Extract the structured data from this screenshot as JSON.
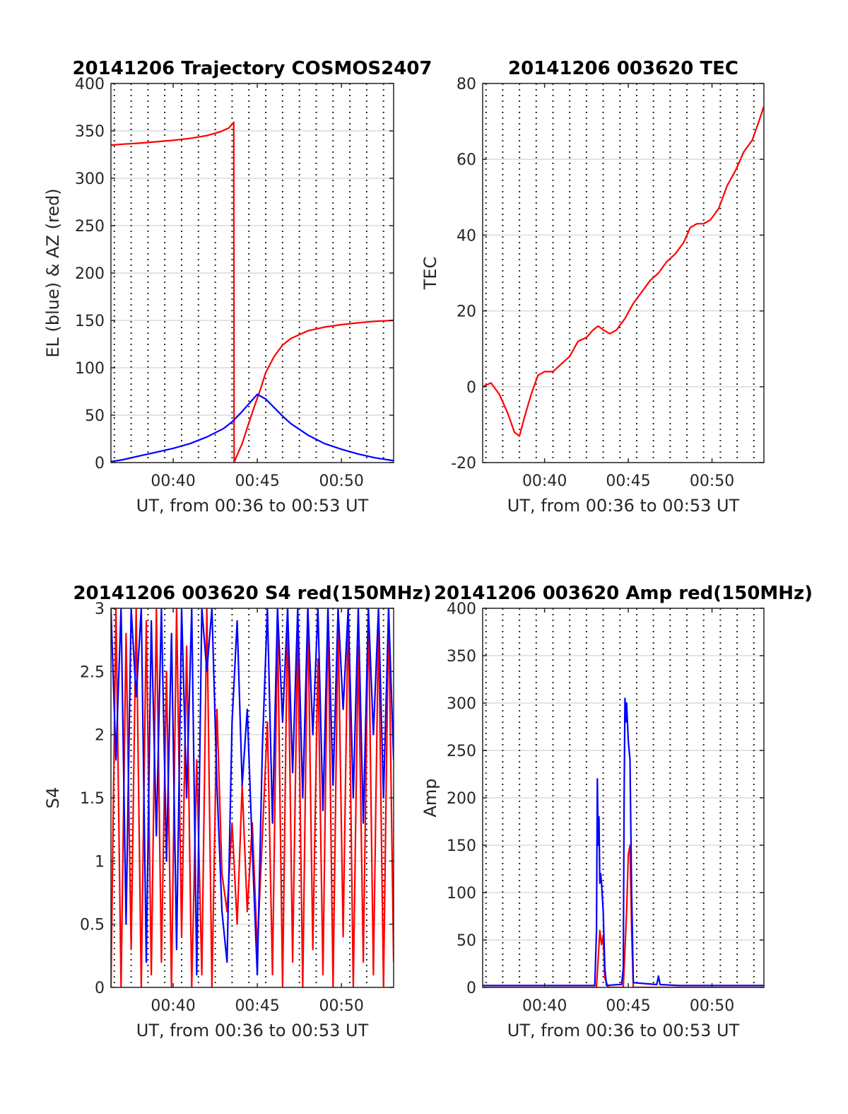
{
  "colors": {
    "az": "#ff0000",
    "el": "#0000ff",
    "red": "#ff0000",
    "blue": "#0000ff",
    "grid": "#262626"
  },
  "chart_data": [
    {
      "type": "line",
      "title": "20141206 Trajectory COSMOS2407",
      "xlabel": "UT, from 00:36 to 00:53 UT",
      "ylabel": "EL (blue) & AZ (red)",
      "xlim": [
        36.3,
        53.1
      ],
      "ylim": [
        0,
        400
      ],
      "xticks": [
        40,
        45,
        50
      ],
      "xticklabels": [
        "00:40",
        "00:45",
        "00:50"
      ],
      "yticks": [
        0,
        50,
        100,
        150,
        200,
        250,
        300,
        350,
        400
      ],
      "yticklabels": [
        "0",
        "50",
        "100",
        "150",
        "200",
        "250",
        "300",
        "350",
        "400"
      ],
      "vgrid_minutes": [
        36.5,
        37.5,
        38.5,
        39.5,
        40.5,
        41.5,
        42.5,
        43.5,
        44.5,
        45.5,
        46.5,
        47.5,
        48.5,
        49.5,
        50.5,
        51.5,
        52.5
      ],
      "grid": true,
      "series": [
        {
          "name": "AZ (red)",
          "color": "#ff0000",
          "x": [
            36.3,
            37.0,
            38.0,
            39.0,
            40.0,
            41.0,
            42.0,
            42.8,
            43.3,
            43.6,
            43.62,
            43.8,
            44.1,
            44.5,
            44.8,
            45.0,
            45.2,
            45.5,
            46.0,
            46.5,
            47.0,
            48.0,
            49.0,
            50.0,
            51.0,
            52.0,
            53.1
          ],
          "y": [
            335,
            336,
            337,
            338.5,
            340,
            342,
            345,
            349,
            353,
            359,
            0,
            8,
            20,
            42,
            58,
            68,
            78,
            95,
            112,
            124,
            131,
            139,
            143,
            145.5,
            147.5,
            149,
            150
          ]
        },
        {
          "name": "EL (blue)",
          "color": "#0000ff",
          "x": [
            36.3,
            37.0,
            38.0,
            39.0,
            40.0,
            41.0,
            42.0,
            43.0,
            43.5,
            44.0,
            44.5,
            45.0,
            45.5,
            46.0,
            46.5,
            47.0,
            48.0,
            49.0,
            50.0,
            51.0,
            52.0,
            53.1
          ],
          "y": [
            1,
            3,
            7,
            11,
            15,
            20,
            27,
            36,
            43,
            52,
            62,
            72,
            67,
            58,
            49,
            41,
            29,
            20,
            14,
            9,
            5,
            2
          ]
        }
      ]
    },
    {
      "type": "line",
      "title": "20141206 003620 TEC",
      "xlabel": "UT, from 00:36 to 00:53 UT",
      "ylabel": "TEC",
      "xlim": [
        36.3,
        53.1
      ],
      "ylim": [
        -20,
        80
      ],
      "xticks": [
        40,
        45,
        50
      ],
      "xticklabels": [
        "00:40",
        "00:45",
        "00:50"
      ],
      "yticks": [
        -20,
        0,
        20,
        40,
        60,
        80
      ],
      "yticklabels": [
        "-20",
        "0",
        "20",
        "40",
        "60",
        "80"
      ],
      "vgrid_minutes": [
        36.5,
        37.5,
        38.5,
        39.5,
        40.5,
        41.5,
        42.5,
        43.5,
        44.5,
        45.5,
        46.5,
        47.5,
        48.5,
        49.5,
        50.5,
        51.5,
        52.5
      ],
      "grid": true,
      "series": [
        {
          "color": "#ff0000",
          "x": [
            36.3,
            36.8,
            37.3,
            37.8,
            38.2,
            38.5,
            38.8,
            39.2,
            39.6,
            40.0,
            40.5,
            41.0,
            41.5,
            42.0,
            42.5,
            42.9,
            43.2,
            43.5,
            43.9,
            44.3,
            44.8,
            45.3,
            45.8,
            46.3,
            46.8,
            47.3,
            47.8,
            48.3,
            48.7,
            49.1,
            49.5,
            49.9,
            50.4,
            50.9,
            51.4,
            51.9,
            52.4,
            52.8,
            53.1
          ],
          "y": [
            0,
            1,
            -2,
            -7,
            -12,
            -13,
            -8,
            -2,
            3,
            4,
            4,
            6,
            8,
            12,
            13,
            15,
            16,
            15,
            14,
            15,
            18,
            22,
            25,
            28,
            30,
            33,
            35,
            38,
            42,
            43,
            43,
            44,
            47,
            53,
            57,
            62,
            65,
            70,
            74
          ]
        }
      ]
    },
    {
      "type": "line",
      "title": "20141206 003620 S4 red(150MHz)",
      "xlabel": "UT, from 00:36 to 00:53 UT",
      "ylabel": "S4",
      "xlim": [
        36.3,
        53.1
      ],
      "ylim": [
        0,
        3
      ],
      "xticks": [
        40,
        45,
        50
      ],
      "xticklabels": [
        "00:40",
        "00:45",
        "00:50"
      ],
      "yticks": [
        0,
        0.5,
        1,
        1.5,
        2,
        2.5,
        3
      ],
      "yticklabels": [
        "0",
        "0.5",
        "1",
        "1.5",
        "2",
        "2.5",
        "3"
      ],
      "vgrid_minutes": [
        36.5,
        37.5,
        38.5,
        39.5,
        40.5,
        41.5,
        42.5,
        43.5,
        44.5,
        45.5,
        46.5,
        47.5,
        48.5,
        49.5,
        50.5,
        51.5,
        52.5
      ],
      "grid": true,
      "series": [
        {
          "name": "red",
          "color": "#ff0000",
          "x": [
            36.3,
            36.6,
            36.9,
            37.2,
            37.5,
            37.8,
            38.1,
            38.4,
            38.7,
            39.0,
            39.3,
            39.6,
            39.9,
            40.2,
            40.5,
            40.8,
            41.1,
            41.4,
            41.7,
            42.0,
            42.3,
            42.6,
            42.9,
            43.2,
            43.5,
            43.8,
            44.1,
            44.4,
            44.7,
            45.0,
            45.3,
            45.6,
            45.9,
            46.2,
            46.5,
            46.8,
            47.1,
            47.4,
            47.7,
            48.0,
            48.3,
            48.6,
            48.9,
            49.2,
            49.5,
            49.8,
            50.1,
            50.4,
            50.7,
            51.0,
            51.3,
            51.6,
            51.9,
            52.2,
            52.5,
            52.8,
            53.1
          ],
          "y": [
            0,
            3,
            0,
            2.8,
            0.3,
            3,
            0,
            2.9,
            0.1,
            3,
            0.2,
            2.5,
            0,
            3,
            0.4,
            2.7,
            0,
            1.8,
            0.1,
            3,
            0,
            2.2,
            0.9,
            0.6,
            1.3,
            0.5,
            1.6,
            0.6,
            1.3,
            0.3,
            1.2,
            2.1,
            0.1,
            2.9,
            0,
            3,
            0.2,
            2.8,
            0,
            3,
            0.3,
            2.6,
            0.1,
            3,
            0,
            2.9,
            0.4,
            3,
            0,
            2.7,
            0.2,
            3,
            0.1,
            2.9,
            0,
            3,
            0.2
          ]
        },
        {
          "name": "blue",
          "color": "#0000ff",
          "x": [
            36.3,
            36.6,
            36.9,
            37.2,
            37.5,
            37.8,
            38.1,
            38.4,
            38.7,
            39.0,
            39.3,
            39.6,
            39.9,
            40.2,
            40.5,
            40.8,
            41.1,
            41.4,
            41.7,
            42.0,
            42.3,
            42.6,
            42.9,
            43.2,
            43.5,
            43.8,
            44.1,
            44.4,
            44.7,
            45.0,
            45.3,
            45.6,
            45.9,
            46.2,
            46.5,
            46.8,
            47.1,
            47.4,
            47.7,
            48.0,
            48.3,
            48.6,
            48.9,
            49.2,
            49.5,
            49.8,
            50.1,
            50.4,
            50.7,
            51.0,
            51.3,
            51.6,
            51.9,
            52.2,
            52.5,
            52.8,
            53.1
          ],
          "y": [
            3,
            1.8,
            3,
            0.5,
            3,
            2.3,
            3,
            0.2,
            2.9,
            1.2,
            3,
            1.0,
            2.8,
            0.3,
            3,
            1.5,
            3,
            0.1,
            3,
            2.5,
            3,
            1.6,
            0.6,
            0.2,
            2.1,
            2.9,
            1.6,
            2.2,
            1.1,
            0.1,
            1.9,
            3,
            1.3,
            3,
            2.1,
            3,
            1.7,
            3,
            1.5,
            3,
            2.0,
            3,
            1.4,
            3,
            1.6,
            3,
            2.2,
            3,
            1.5,
            3,
            1.3,
            3,
            2.0,
            3,
            1.5,
            3,
            1.8
          ]
        }
      ]
    },
    {
      "type": "line",
      "title": "20141206 003620 Amp red(150MHz)",
      "xlabel": "UT, from 00:36 to 00:53 UT",
      "ylabel": "Amp",
      "xlim": [
        36.3,
        53.1
      ],
      "ylim": [
        0,
        400
      ],
      "xticks": [
        40,
        45,
        50
      ],
      "xticklabels": [
        "00:40",
        "00:45",
        "00:50"
      ],
      "yticks": [
        0,
        50,
        100,
        150,
        200,
        250,
        300,
        350,
        400
      ],
      "yticklabels": [
        "0",
        "50",
        "100",
        "150",
        "200",
        "250",
        "300",
        "350",
        "400"
      ],
      "vgrid_minutes": [
        36.5,
        37.5,
        38.5,
        39.5,
        40.5,
        41.5,
        42.5,
        43.5,
        44.5,
        45.5,
        46.5,
        47.5,
        48.5,
        49.5,
        50.5,
        51.5,
        52.5
      ],
      "grid": true,
      "series": [
        {
          "name": "red",
          "color": "#ff0000",
          "x": [
            36.3,
            43.0,
            43.1,
            43.2,
            43.3,
            43.4,
            43.5,
            43.6,
            43.8,
            44.5,
            44.7,
            44.8,
            44.9,
            45.0,
            45.1,
            45.2,
            45.3,
            53.1
          ],
          "y": [
            0,
            0,
            0,
            30,
            60,
            45,
            55,
            10,
            0,
            0,
            0,
            40,
            80,
            140,
            150,
            60,
            0,
            0
          ]
        },
        {
          "name": "blue",
          "color": "#0000ff",
          "x": [
            36.3,
            38.0,
            40.0,
            42.0,
            43.0,
            43.1,
            43.15,
            43.2,
            43.25,
            43.3,
            43.35,
            43.4,
            43.5,
            43.6,
            43.7,
            44.4,
            44.6,
            44.7,
            44.75,
            44.8,
            44.85,
            44.9,
            45.0,
            45.1,
            45.2,
            45.3,
            46.7,
            46.8,
            46.9,
            48.0,
            50.0,
            53.1
          ],
          "y": [
            2,
            2,
            2,
            2,
            2,
            60,
            220,
            150,
            180,
            110,
            120,
            110,
            80,
            20,
            2,
            3,
            3,
            20,
            200,
            305,
            280,
            300,
            260,
            240,
            100,
            5,
            3,
            12,
            3,
            2,
            2,
            2
          ]
        }
      ]
    }
  ]
}
